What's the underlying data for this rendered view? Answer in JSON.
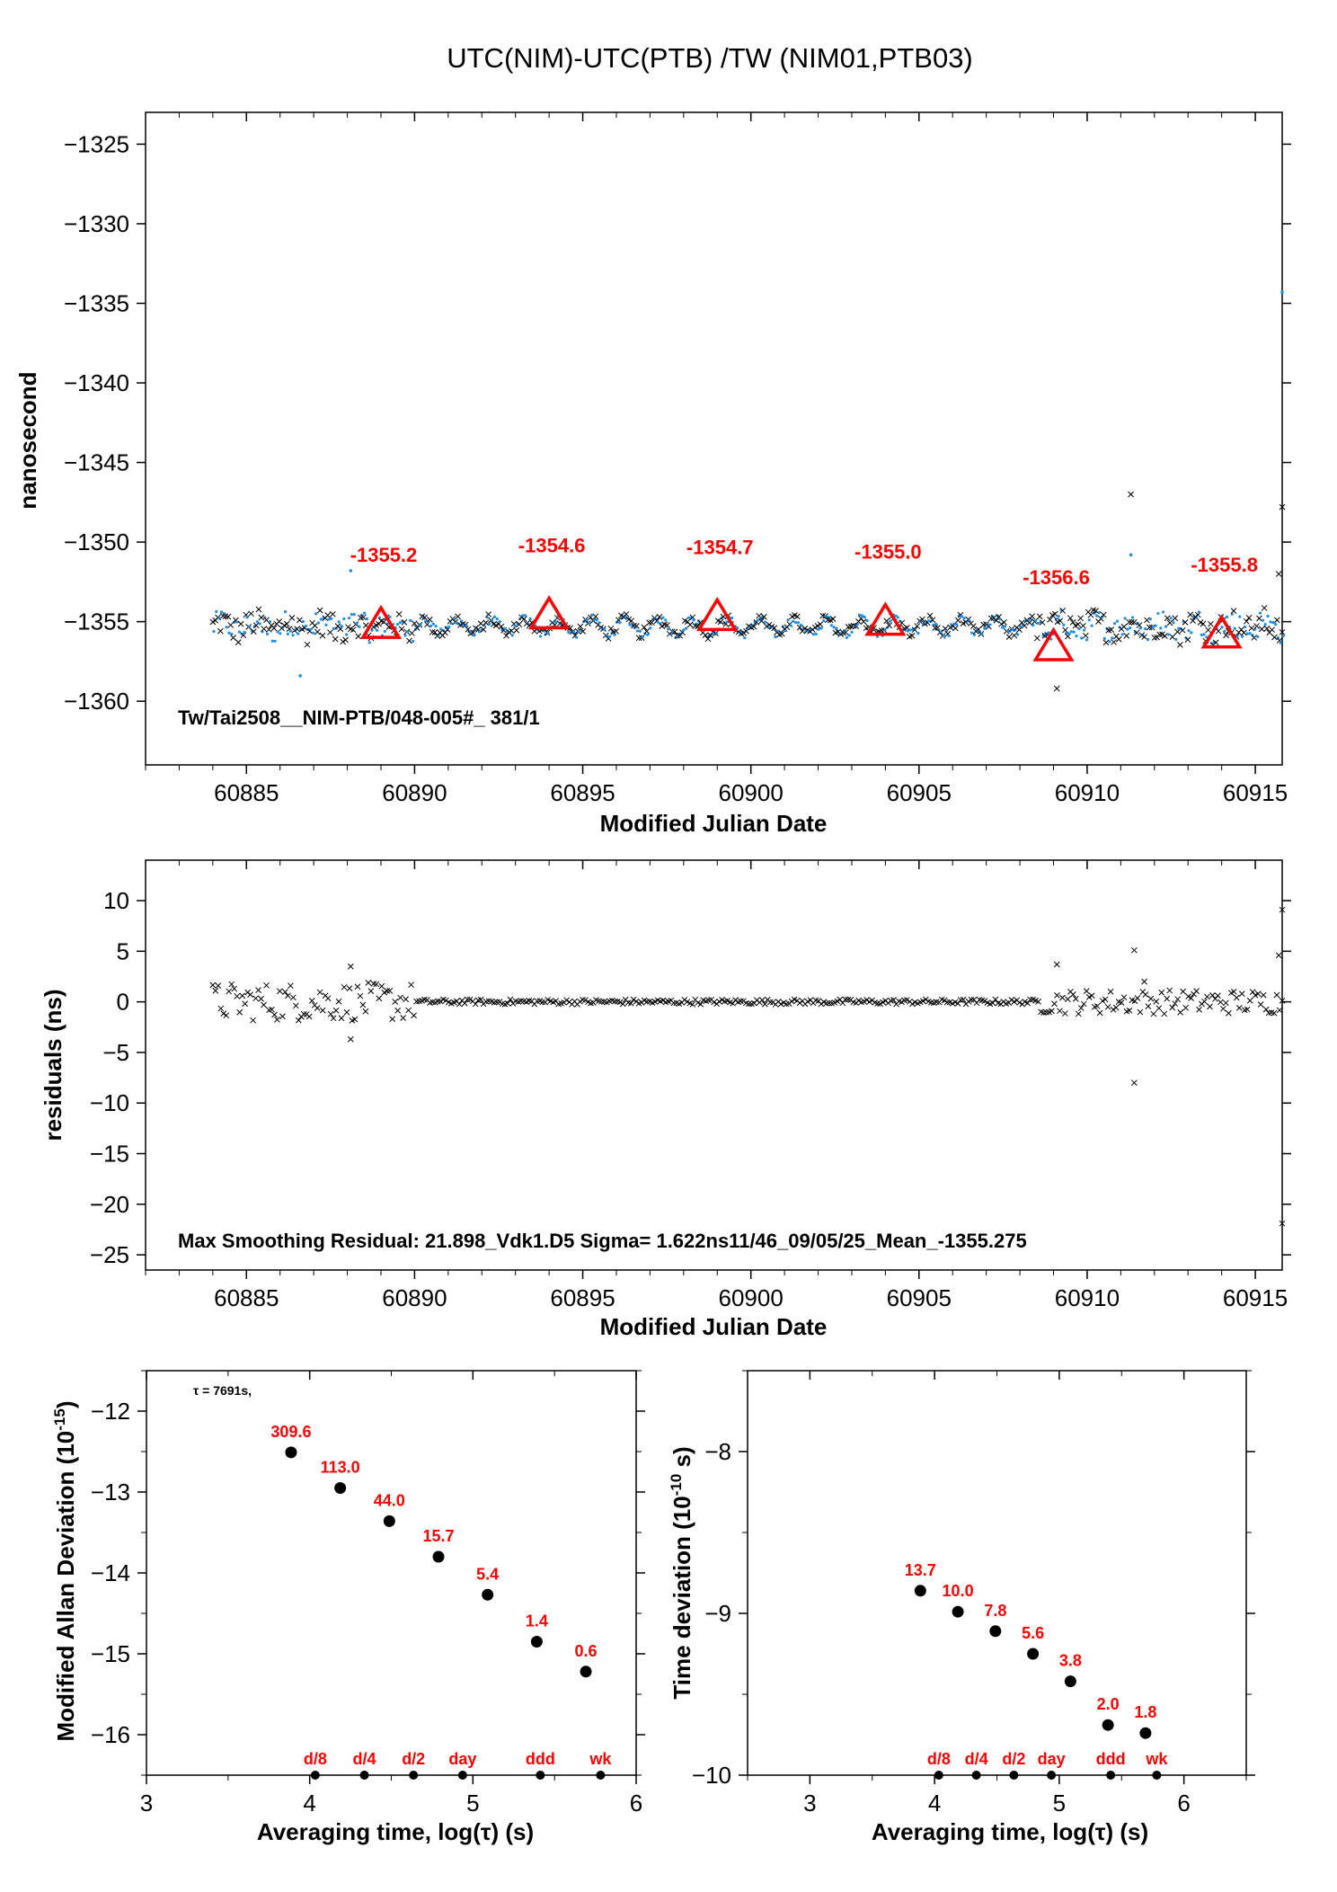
{
  "title": "UTC(NIM)-UTC(PTB)  /TW  (NIM01,PTB03)",
  "colors": {
    "red": "#ff0000",
    "blue": "#1f8fe8",
    "black": "#000000"
  },
  "chart_data": [
    {
      "type": "scatter",
      "ylabel": "nanosecond",
      "xlabel": "Modified Julian Date",
      "xlim": [
        60882.0,
        60915.8
      ],
      "ylim": [
        -1364,
        -1323
      ],
      "xticks": [
        "60885",
        "60890",
        "60895",
        "60900",
        "60905",
        "60910",
        "60915"
      ],
      "yticks": [
        "−1325",
        "−1330",
        "−1335",
        "−1340",
        "−1345",
        "−1350",
        "−1355",
        "−1360"
      ],
      "annotation": "Tw/Tai2508__NIM-PTB/048-005#_  381/1",
      "daily_means": [
        {
          "x": 60889,
          "y": -1355.2,
          "label": "-1355.2"
        },
        {
          "x": 60894,
          "y": -1354.6,
          "label": "-1354.6"
        },
        {
          "x": 60899,
          "y": -1354.7,
          "label": "-1354.7"
        },
        {
          "x": 60904,
          "y": -1355.0,
          "label": "-1355.0"
        },
        {
          "x": 60909,
          "y": -1356.6,
          "label": "-1356.6"
        },
        {
          "x": 60914,
          "y": -1355.8,
          "label": "-1355.8"
        }
      ],
      "series": [
        {
          "marker": "x",
          "color": "#000000",
          "x_range": [
            60884.0,
            60915.8
          ],
          "level": -1355.3,
          "typical_spread": 0.9
        },
        {
          "marker": "dot",
          "color": "#1f8fe8",
          "x_range": [
            60884.0,
            60915.8
          ],
          "level": -1355.3,
          "typical_spread": 0.8
        }
      ],
      "outliers": [
        {
          "x": 60911.3,
          "y": -1347.0
        },
        {
          "x": 60915.8,
          "y": -1334.3
        },
        {
          "x": 60915.8,
          "y": -1347.8
        },
        {
          "x": 60911.3,
          "y": -1350.8
        },
        {
          "x": 60915.7,
          "y": -1352.0
        },
        {
          "x": 60888.1,
          "y": -1351.8
        },
        {
          "x": 60909.1,
          "y": -1359.2
        },
        {
          "x": 60886.6,
          "y": -1358.4
        }
      ]
    },
    {
      "type": "scatter",
      "ylabel": "residuals (ns)",
      "xlabel": "Modified Julian Date",
      "xlim": [
        60882.0,
        60915.8
      ],
      "ylim": [
        -26.5,
        14
      ],
      "xticks": [
        "60885",
        "60890",
        "60895",
        "60900",
        "60905",
        "60910",
        "60915"
      ],
      "yticks": [
        "10",
        "5",
        "0",
        "−5",
        "−10",
        "−15",
        "−20",
        "−25"
      ],
      "annotation": "Max Smoothing Residual: 21.898_Vdk1.D5  Sigma= 1.622ns11/46_09/05/25_Mean_-1355.275",
      "outliers": [
        {
          "x": 60911.4,
          "y": -8.0
        },
        {
          "x": 60911.4,
          "y": 5.1
        },
        {
          "x": 60915.8,
          "y": 9.1
        },
        {
          "x": 60915.8,
          "y": -21.9
        },
        {
          "x": 60909.1,
          "y": 3.7
        },
        {
          "x": 60888.1,
          "y": 3.5
        },
        {
          "x": 60888.1,
          "y": -3.7
        },
        {
          "x": 60915.7,
          "y": 4.6
        },
        {
          "x": 60911.7,
          "y": 2.0
        }
      ]
    },
    {
      "type": "scatter",
      "ylabel": "Modified Allan Deviation (10",
      "ylabel_sup": "-15",
      "ylabel_end": ")",
      "xlabel": "Averaging time, log(τ) (s)",
      "xlim": [
        3,
        6
      ],
      "ylim": [
        -16.5,
        -11.5
      ],
      "xticks": [
        "3",
        "4",
        "5",
        "6"
      ],
      "yticks": [
        "−12",
        "−13",
        "−14",
        "−15",
        "−16"
      ],
      "tau_note": "τ = 7691s,",
      "points": [
        {
          "x": 3.886,
          "y": -12.51,
          "label": "309.6"
        },
        {
          "x": 4.187,
          "y": -12.95,
          "label": "113.0"
        },
        {
          "x": 4.488,
          "y": -13.36,
          "label": "44.0"
        },
        {
          "x": 4.789,
          "y": -13.8,
          "label": "15.7"
        },
        {
          "x": 5.09,
          "y": -14.27,
          "label": "5.4"
        },
        {
          "x": 5.391,
          "y": -14.85,
          "label": "1.4"
        },
        {
          "x": 5.692,
          "y": -15.22,
          "label": "0.6"
        }
      ],
      "markers": [
        {
          "x": 4.034,
          "label": "d/8"
        },
        {
          "x": 4.335,
          "label": "d/4"
        },
        {
          "x": 4.636,
          "label": "d/2"
        },
        {
          "x": 4.937,
          "label": "day"
        },
        {
          "x": 5.413,
          "label": "ddd"
        },
        {
          "x": 5.782,
          "label": "wk"
        }
      ]
    },
    {
      "type": "scatter",
      "ylabel": "Time deviation (10",
      "ylabel_sup": "-10",
      "ylabel_end": " s)",
      "xlabel": "Averaging time, log(τ) (s)",
      "xlim": [
        2.5,
        6.5
      ],
      "ylim": [
        -10,
        -7.5
      ],
      "xticks": [
        "3",
        "4",
        "5",
        "6"
      ],
      "yticks": [
        "−8",
        "−9",
        "−10"
      ],
      "points": [
        {
          "x": 3.886,
          "y": -8.86,
          "label": "13.7"
        },
        {
          "x": 4.187,
          "y": -8.99,
          "label": "10.0"
        },
        {
          "x": 4.488,
          "y": -9.11,
          "label": "7.8"
        },
        {
          "x": 4.789,
          "y": -9.25,
          "label": "5.6"
        },
        {
          "x": 5.09,
          "y": -9.42,
          "label": "3.8"
        },
        {
          "x": 5.391,
          "y": -9.69,
          "label": "2.0"
        },
        {
          "x": 5.692,
          "y": -9.74,
          "label": "1.8"
        }
      ],
      "markers": [
        {
          "x": 4.034,
          "label": "d/8"
        },
        {
          "x": 4.335,
          "label": "d/4"
        },
        {
          "x": 4.636,
          "label": "d/2"
        },
        {
          "x": 4.937,
          "label": "day"
        },
        {
          "x": 5.413,
          "label": "ddd"
        },
        {
          "x": 5.782,
          "label": "wk"
        }
      ]
    }
  ]
}
